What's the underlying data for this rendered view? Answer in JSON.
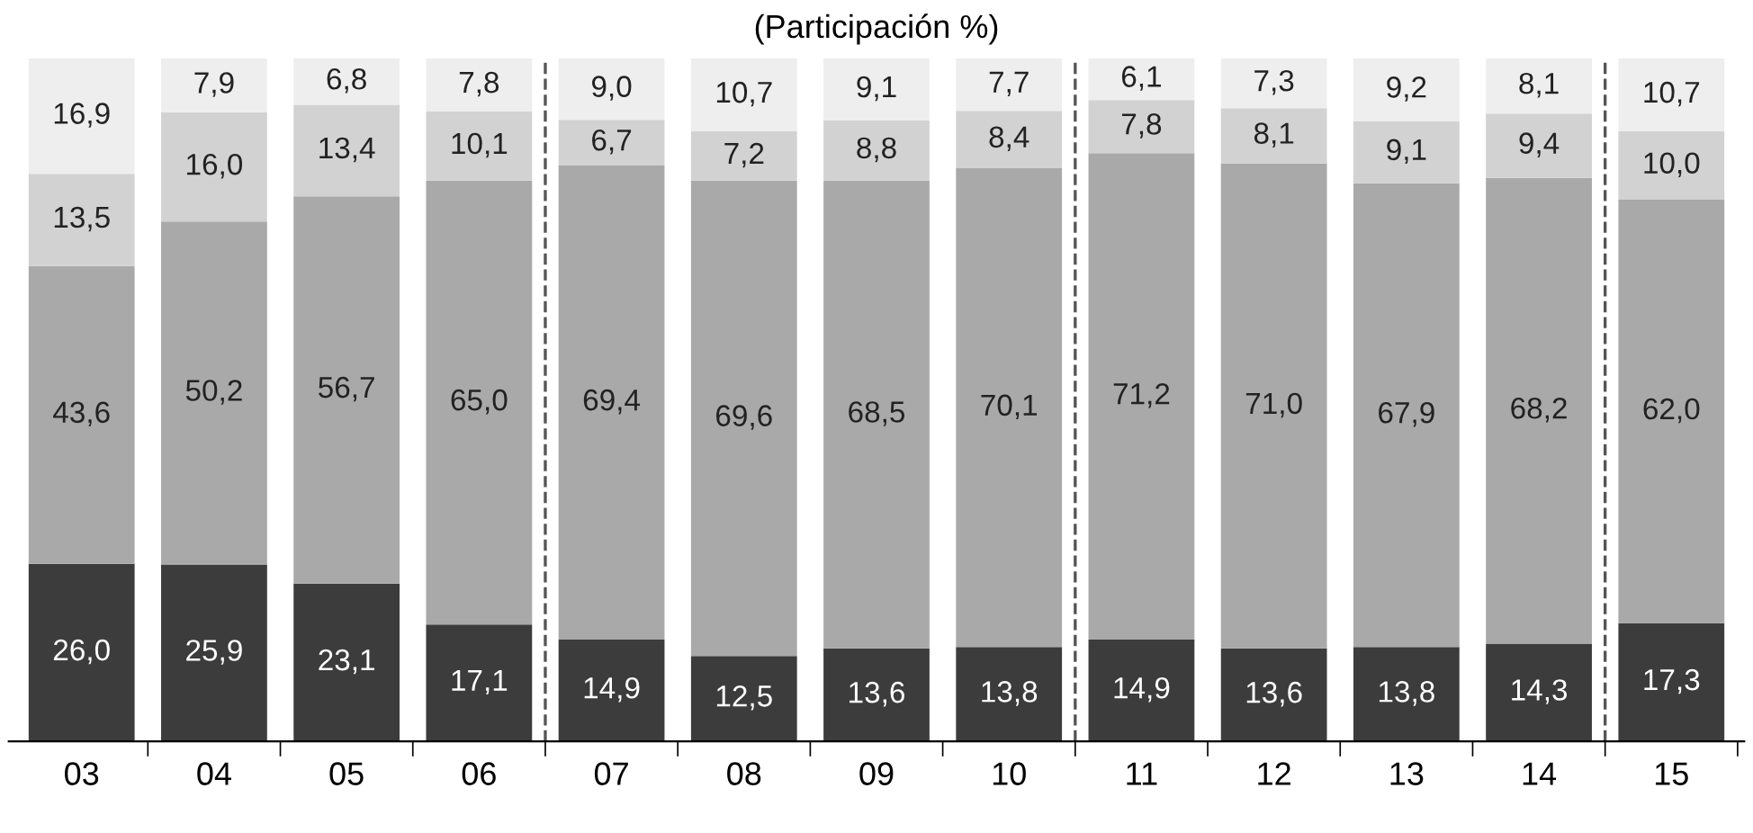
{
  "chart_data": {
    "type": "bar",
    "stacked": true,
    "title": "(Participación %)",
    "categories": [
      "03",
      "04",
      "05",
      "06",
      "07",
      "08",
      "09",
      "10",
      "11",
      "12",
      "13",
      "14",
      "15"
    ],
    "series": [
      {
        "color": "#3c3c3c",
        "values": [
          26.0,
          25.9,
          23.1,
          17.1,
          14.9,
          12.5,
          13.6,
          13.8,
          14.9,
          13.6,
          13.8,
          14.3,
          17.3
        ],
        "value_labels": [
          "26,0",
          "25,9",
          "23,1",
          "17,1",
          "14,9",
          "12,5",
          "13,6",
          "13,8",
          "14,9",
          "13,6",
          "13,8",
          "14,3",
          "17,3"
        ]
      },
      {
        "color": "#a9a9a9",
        "values": [
          43.6,
          50.2,
          56.7,
          65.0,
          69.4,
          69.6,
          68.5,
          70.1,
          71.2,
          71.0,
          67.9,
          68.2,
          62.0
        ],
        "value_labels": [
          "43,6",
          "50,2",
          "56,7",
          "65,0",
          "69,4",
          "69,6",
          "68,5",
          "70,1",
          "71,2",
          "71,0",
          "67,9",
          "68,2",
          "62,0"
        ]
      },
      {
        "color": "#d2d2d2",
        "values": [
          13.5,
          16.0,
          13.4,
          10.1,
          6.7,
          7.2,
          8.8,
          8.4,
          7.8,
          8.1,
          9.1,
          9.4,
          10.0
        ],
        "value_labels": [
          "13,5",
          "16,0",
          "13,4",
          "10,1",
          "6,7",
          "7,2",
          "8,8",
          "8,4",
          "7,8",
          "8,1",
          "9,1",
          "9,4",
          "10,0"
        ]
      },
      {
        "color": "#eeeeee",
        "values": [
          16.9,
          7.9,
          6.8,
          7.8,
          9.0,
          10.7,
          9.1,
          7.7,
          6.1,
          7.3,
          9.2,
          8.1,
          10.7
        ],
        "value_labels": [
          "16,9",
          "7,9",
          "6,8",
          "7,8",
          "9,0",
          "10,7",
          "9,1",
          "7,7",
          "6,1",
          "7,3",
          "9,2",
          "8,1",
          "10,7"
        ]
      }
    ],
    "grid": false,
    "legend": false
  }
}
